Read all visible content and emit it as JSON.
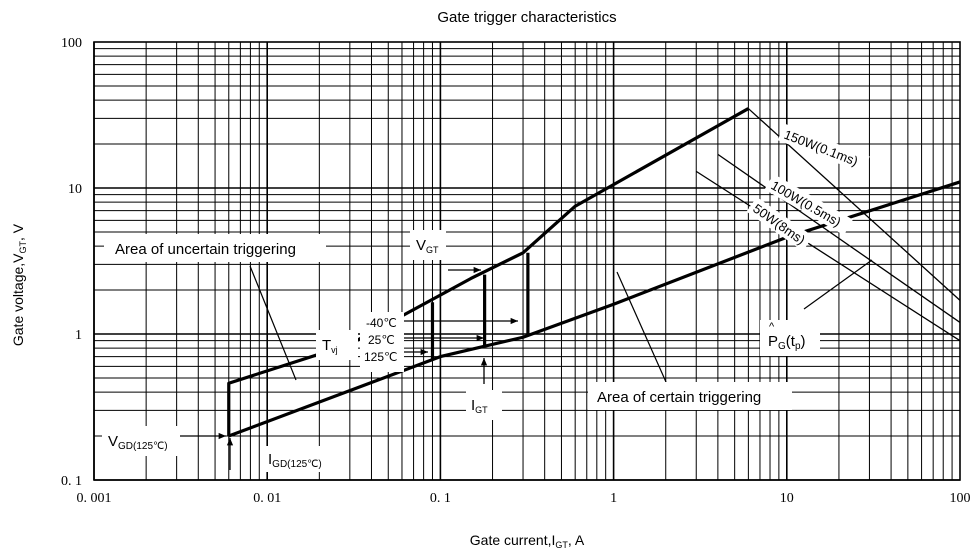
{
  "chart_data": {
    "type": "line",
    "title": "Gate trigger characteristics",
    "xlabel": {
      "main": "Gate current,I",
      "sub": "GT",
      "unit": ",  A"
    },
    "ylabel": {
      "main": "Gate voltage,V",
      "sub": "GT",
      "unit": ",  V"
    },
    "x_scale": "log",
    "y_scale": "log",
    "xlim": [
      0.001,
      100
    ],
    "ylim": [
      0.1,
      100
    ],
    "grid": true,
    "x_ticks": [
      {
        "value": 0.001,
        "label": "0. 001"
      },
      {
        "value": 0.01,
        "label": "0. 01"
      },
      {
        "value": 0.1,
        "label": "0. 1"
      },
      {
        "value": 1,
        "label": "1"
      },
      {
        "value": 10,
        "label": "10"
      },
      {
        "value": 100,
        "label": "100"
      }
    ],
    "y_ticks": [
      {
        "value": 0.1,
        "label": "0. 1"
      },
      {
        "value": 1,
        "label": "1"
      },
      {
        "value": 10,
        "label": "10"
      },
      {
        "value": 100,
        "label": "100"
      }
    ],
    "boundary_lines": [
      {
        "points": [
          [
            0.006,
            0.2
          ],
          [
            0.006,
            0.46
          ],
          [
            0.03,
            0.85
          ],
          [
            0.15,
            2.4
          ],
          [
            0.3,
            3.6
          ],
          [
            0.6,
            7.5
          ],
          [
            6,
            35
          ]
        ]
      },
      {
        "points": [
          [
            0.006,
            0.2
          ],
          [
            0.1,
            0.7
          ],
          [
            0.3,
            0.95
          ],
          [
            1,
            1.6
          ],
          [
            10,
            4.6
          ],
          [
            100,
            11
          ]
        ]
      },
      {
        "points": [
          [
            0.09,
            0.68
          ],
          [
            0.09,
            1.65
          ]
        ]
      },
      {
        "points": [
          [
            0.18,
            0.82
          ],
          [
            0.18,
            2.55
          ]
        ]
      },
      {
        "points": [
          [
            0.32,
            0.97
          ],
          [
            0.32,
            3.6
          ]
        ]
      }
    ],
    "power_lines": [
      {
        "label": "150W(0.1ms)",
        "points": [
          [
            6,
            35
          ],
          [
            100,
            1.7
          ]
        ],
        "label_at": [
          9.5,
          22
        ],
        "label_angle": 21
      },
      {
        "label": "100W(0.5ms)",
        "points": [
          [
            4,
            17
          ],
          [
            100,
            1.2
          ]
        ],
        "label_at": [
          8,
          10
        ],
        "label_angle": 30
      },
      {
        "label": "50W(8ms)",
        "points": [
          [
            3,
            13
          ],
          [
            100,
            0.9
          ]
        ],
        "label_at": [
          6.3,
          7
        ],
        "label_angle": 35
      }
    ],
    "annotations": {
      "uncertain": "Area of  uncertain triggering",
      "certain": "Area of  certain triggering",
      "vgt_main": "V",
      "vgt_sub": "GT",
      "igt_main": "I",
      "igt_sub": "GT",
      "tvj_main": "T",
      "tvj_sub": "vj",
      "temp_m40": "-40℃",
      "temp_25": "25℃",
      "temp_125": "125℃",
      "vgd_main": "V",
      "vgd_sub": "GD(125℃)",
      "igd_main": "I",
      "igd_sub": "GD(125℃)",
      "pg_hat": "^",
      "pg_main": "P",
      "pg_sub": "G",
      "pg_tail": "(t",
      "pg_tsub": "p",
      "pg_close": ")"
    }
  }
}
